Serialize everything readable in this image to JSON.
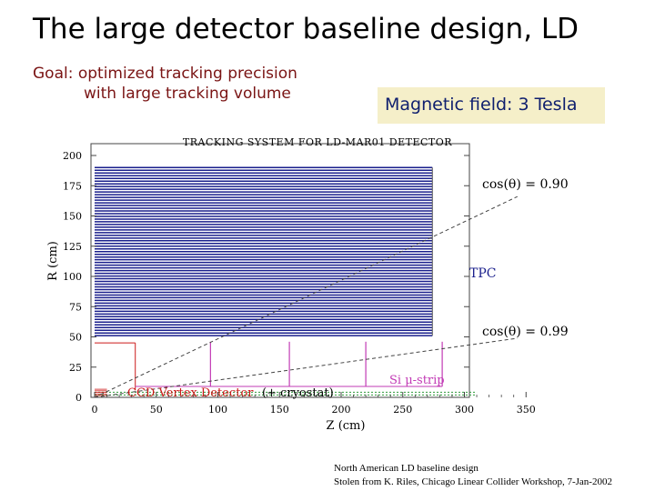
{
  "slide_title": "The large detector baseline design, LD",
  "goal": {
    "line1": "Goal: optimized tracking precision",
    "line2": "with large tracking volume"
  },
  "magnetic_field": "Magnetic field: 3 Tesla",
  "plot": {
    "title": "TRACKING SYSTEM FOR LD-MAR01 DETECTOR",
    "xlabel": "Z (cm)",
    "ylabel": "R (cm)",
    "xticks": [
      "0",
      "50",
      "100",
      "150",
      "200",
      "250",
      "300",
      "350"
    ],
    "yticks": [
      "0",
      "25",
      "50",
      "75",
      "100",
      "125",
      "150",
      "175",
      "200"
    ],
    "xlim": [
      0,
      350
    ],
    "ylim": [
      0,
      200
    ],
    "tpc": {
      "label": "TPC",
      "z_max": 274,
      "r_min": 51,
      "r_max": 190,
      "color": "#1a1f8c"
    },
    "cone_lines": [
      {
        "label": "cos(θ) = 0.90",
        "slope": 0.484
      },
      {
        "label": "cos(θ) = 0.99",
        "slope": 0.1425
      }
    ],
    "si_strip_label": "Si μ-strip",
    "ccd_label": "CCD Vertex Detector",
    "cryostat_label": "(+ cryostat)",
    "ccd_color": "#cc1a1a",
    "si_color": "#c23bb5",
    "label_color": "#1a1f8c"
  },
  "footnote": {
    "line1": "North American LD baseline design",
    "line2": "Stolen from K. Riles, Chicago Linear Collider Workshop, 7-Jan-2002"
  }
}
